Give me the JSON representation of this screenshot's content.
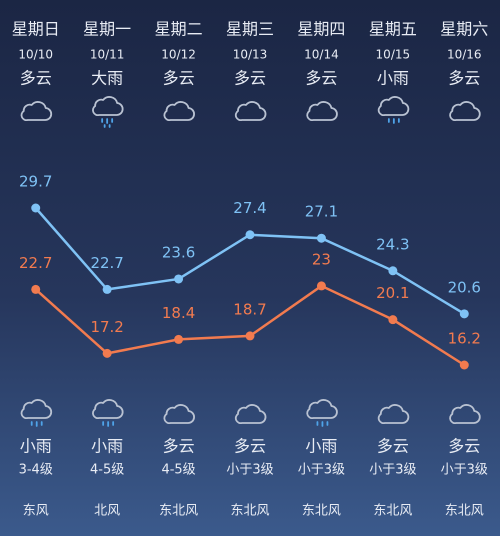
{
  "days": [
    {
      "weekday": "星期日",
      "date": "10/10",
      "day_weather": "多云",
      "night_weather": "小雨",
      "wind_level": "3-4级",
      "wind_direction": "东风"
    },
    {
      "weekday": "星期一",
      "date": "10/11",
      "day_weather": "大雨",
      "night_weather": "小雨",
      "wind_level": "4-5级",
      "wind_direction": "北风"
    },
    {
      "weekday": "星期二",
      "date": "10/12",
      "day_weather": "多云",
      "night_weather": "多云",
      "wind_level": "4-5级",
      "wind_direction": "东北风"
    },
    {
      "weekday": "星期三",
      "date": "10/13",
      "day_weather": "多云",
      "night_weather": "多云",
      "wind_level": "小于3级",
      "wind_direction": "东北风"
    },
    {
      "weekday": "星期四",
      "date": "10/14",
      "day_weather": "多云",
      "night_weather": "小雨",
      "wind_level": "小于3级",
      "wind_direction": "东北风"
    },
    {
      "weekday": "星期五",
      "date": "10/15",
      "day_weather": "小雨",
      "night_weather": "多云",
      "wind_level": "小于3级",
      "wind_direction": "东北风"
    },
    {
      "weekday": "星期六",
      "date": "10/16",
      "day_weather": "多云",
      "night_weather": "多云",
      "wind_level": "小于3级",
      "wind_direction": "东北风"
    }
  ],
  "chart_data": {
    "type": "line",
    "series": [
      {
        "color": "#7fc2f5",
        "values": [
          29.7,
          22.7,
          23.6,
          27.4,
          27.1,
          24.3,
          20.6
        ]
      },
      {
        "color": "#f27b4f",
        "values": [
          22.7,
          17.2,
          18.4,
          18.7,
          23,
          20.1,
          16.2
        ]
      }
    ]
  }
}
